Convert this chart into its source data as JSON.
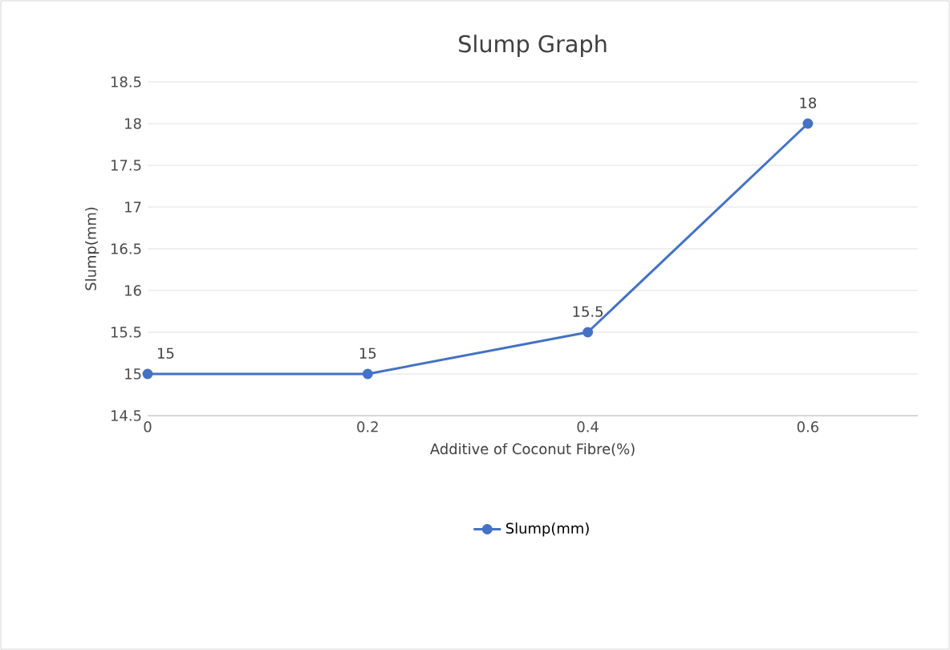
{
  "chart_data": {
    "type": "line",
    "title": "Slump Graph",
    "xlabel": "Additive of Coconut Fibre(%)",
    "ylabel": "Slump(mm)",
    "x": [
      0,
      0.2,
      0.4,
      0.6
    ],
    "series": [
      {
        "name": "Slump(mm)",
        "color": "#4472c4",
        "values": [
          15,
          15,
          15.5,
          18
        ]
      }
    ],
    "xlim": [
      0,
      0.7
    ],
    "xticks": [
      0,
      0.2,
      0.4,
      0.6
    ],
    "ylim": [
      14.5,
      18.5
    ],
    "yticks": [
      14.5,
      15,
      15.5,
      16,
      16.5,
      17,
      17.5,
      18,
      18.5
    ],
    "grid": "y",
    "legend": "bottom",
    "marker": "circle",
    "line_style": "solid",
    "data_labels": true
  }
}
